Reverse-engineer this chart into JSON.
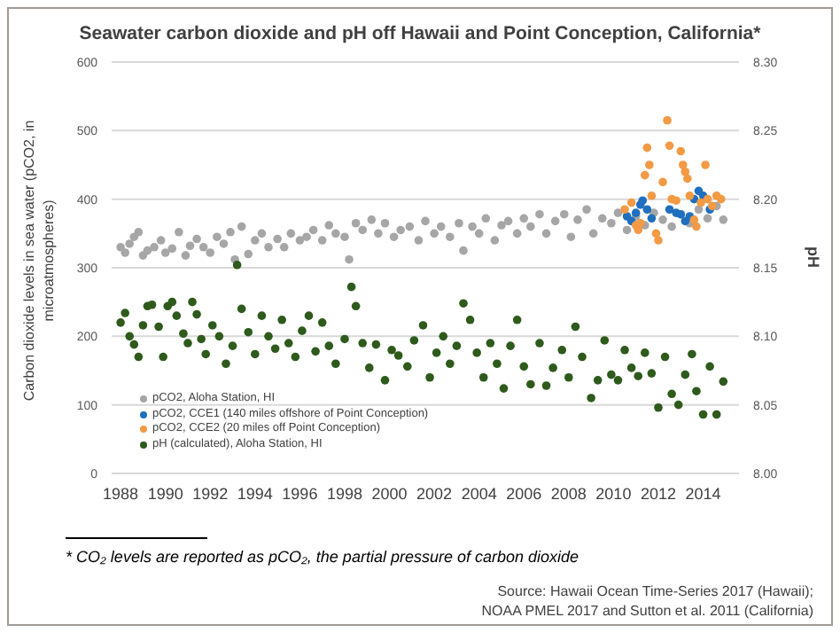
{
  "chart_data": {
    "type": "scatter",
    "title": "Seawater carbon dioxide and pH off Hawaii and Point Conception, California*",
    "ylabel": "Carbon dioxide levels in sea water (pCO2, in microatmospheres)",
    "y2label": "pH",
    "xlim": [
      1987.6,
      2015.6
    ],
    "xticks": [
      1988,
      1990,
      1992,
      1994,
      1996,
      1998,
      2000,
      2002,
      2004,
      2006,
      2008,
      2010,
      2012,
      2014
    ],
    "ylim": [
      0,
      600
    ],
    "yticks": [
      0,
      100,
      200,
      300,
      400,
      500,
      600
    ],
    "y2lim": [
      8.0,
      8.3
    ],
    "y2ticks": [
      {
        "value": 8.0,
        "label": "8.00"
      },
      {
        "value": 8.05,
        "label": "8.05"
      },
      {
        "value": 8.1,
        "label": "8.10"
      },
      {
        "value": 8.15,
        "label": "8.15"
      },
      {
        "value": 8.2,
        "label": "8.20"
      },
      {
        "value": 8.25,
        "label": "8.25"
      },
      {
        "value": 8.3,
        "label": "8.30"
      }
    ],
    "grid": "y",
    "legend": "bottom left",
    "marker": "circle",
    "annotations": [
      "* CO₂ levels are reported as pCO₂, the partial pressure of carbon dioxide",
      "Source: Hawaii Ocean Time-Series 2017 (Hawaii);",
      "NOAA PMEL 2017 and Sutton et al. 2011 (California)"
    ],
    "series": [
      {
        "name": "pCO2, Aloha Station, HI",
        "color": "#a6a6a6",
        "x": [
          1988.0,
          1988.2,
          1988.4,
          1988.6,
          1988.8,
          1989.0,
          1989.2,
          1989.5,
          1989.8,
          1990.0,
          1990.3,
          1990.6,
          1990.9,
          1991.1,
          1991.4,
          1991.7,
          1992.0,
          1992.3,
          1992.6,
          1992.9,
          1993.1,
          1993.4,
          1993.7,
          1994.0,
          1994.3,
          1994.6,
          1995.0,
          1995.3,
          1995.6,
          1996.0,
          1996.3,
          1996.6,
          1997.0,
          1997.3,
          1997.6,
          1998.0,
          1998.2,
          1998.5,
          1998.8,
          1999.2,
          1999.5,
          1999.8,
          2000.2,
          2000.5,
          2000.9,
          2001.3,
          2001.6,
          2002.0,
          2002.3,
          2002.7,
          2003.1,
          2003.3,
          2003.7,
          2004.0,
          2004.3,
          2004.7,
          2005.0,
          2005.3,
          2005.7,
          2006.0,
          2006.3,
          2006.7,
          2007.0,
          2007.4,
          2007.8,
          2008.1,
          2008.4,
          2008.8,
          2009.1,
          2009.5,
          2009.9,
          2010.2,
          2010.6,
          2011.0,
          2011.4,
          2011.8,
          2012.2,
          2012.6,
          2013.0,
          2013.4,
          2013.8,
          2014.2,
          2014.6,
          2014.9
        ],
        "values": [
          330,
          322,
          335,
          345,
          352,
          318,
          325,
          330,
          340,
          322,
          328,
          352,
          318,
          332,
          342,
          330,
          322,
          345,
          335,
          352,
          312,
          360,
          320,
          340,
          350,
          330,
          342,
          330,
          350,
          340,
          345,
          355,
          340,
          362,
          350,
          345,
          312,
          365,
          355,
          370,
          350,
          365,
          345,
          355,
          360,
          340,
          368,
          350,
          360,
          345,
          365,
          325,
          360,
          350,
          372,
          340,
          362,
          368,
          350,
          372,
          360,
          378,
          350,
          368,
          378,
          345,
          370,
          385,
          350,
          372,
          365,
          380,
          355,
          375,
          362,
          380,
          370,
          360,
          378,
          365,
          385,
          372,
          390,
          370
        ]
      },
      {
        "name": "pCO2, CCE1 (140 miles offshore of Point Conception)",
        "color": "#1f6fbf",
        "x": [
          2010.6,
          2010.8,
          2011.0,
          2011.2,
          2011.3,
          2011.5,
          2011.7,
          2012.5,
          2012.8,
          2013.0,
          2013.2,
          2013.4,
          2013.6,
          2013.8,
          2014.0,
          2014.3
        ],
        "values": [
          375,
          368,
          380,
          392,
          398,
          385,
          372,
          385,
          380,
          378,
          368,
          375,
          400,
          412,
          405,
          385
        ]
      },
      {
        "name": "pCO2, CCE2 (20 miles off Point Conception)",
        "color": "#f39a44",
        "x": [
          2010.5,
          2010.8,
          2011.0,
          2011.1,
          2011.2,
          2011.4,
          2011.5,
          2011.6,
          2011.7,
          2011.9,
          2012.0,
          2012.2,
          2012.4,
          2012.5,
          2012.6,
          2012.8,
          2013.0,
          2013.1,
          2013.2,
          2013.3,
          2013.4,
          2013.6,
          2013.7,
          2013.9,
          2014.1,
          2014.2,
          2014.4,
          2014.6,
          2014.8
        ],
        "values": [
          385,
          395,
          362,
          355,
          365,
          435,
          475,
          450,
          405,
          350,
          340,
          425,
          515,
          478,
          400,
          398,
          470,
          450,
          440,
          430,
          405,
          370,
          360,
          395,
          450,
          400,
          390,
          405,
          400
        ]
      },
      {
        "name": "pH (calculated), Aloha Station, HI",
        "color": "#2e5a1c",
        "axis": "y2",
        "x": [
          1988.0,
          1988.2,
          1988.4,
          1988.6,
          1988.8,
          1989.0,
          1989.2,
          1989.4,
          1989.7,
          1989.9,
          1990.1,
          1990.3,
          1990.5,
          1990.8,
          1991.0,
          1991.2,
          1991.4,
          1991.6,
          1991.8,
          1992.1,
          1992.4,
          1992.7,
          1993.0,
          1993.2,
          1993.4,
          1993.7,
          1994.0,
          1994.3,
          1994.6,
          1994.9,
          1995.2,
          1995.5,
          1995.8,
          1996.1,
          1996.4,
          1996.7,
          1997.0,
          1997.3,
          1997.6,
          1998.0,
          1998.3,
          1998.5,
          1998.8,
          1999.1,
          1999.4,
          1999.8,
          2000.1,
          2000.4,
          2000.8,
          2001.1,
          2001.5,
          2001.8,
          2002.1,
          2002.4,
          2002.7,
          2003.0,
          2003.3,
          2003.6,
          2003.9,
          2004.2,
          2004.5,
          2004.8,
          2005.1,
          2005.4,
          2005.7,
          2006.0,
          2006.3,
          2006.7,
          2007.0,
          2007.3,
          2007.7,
          2008.0,
          2008.3,
          2008.6,
          2009.0,
          2009.3,
          2009.6,
          2009.9,
          2010.2,
          2010.5,
          2010.8,
          2011.1,
          2011.4,
          2011.7,
          2012.0,
          2012.3,
          2012.6,
          2012.9,
          2013.2,
          2013.5,
          2013.7,
          2014.0,
          2014.3,
          2014.6,
          2014.9
        ],
        "values": [
          8.11,
          8.117,
          8.1,
          8.094,
          8.085,
          8.108,
          8.122,
          8.123,
          8.107,
          8.085,
          8.122,
          8.125,
          8.115,
          8.102,
          8.095,
          8.125,
          8.116,
          8.098,
          8.087,
          8.108,
          8.1,
          8.08,
          8.093,
          8.152,
          8.12,
          8.103,
          8.087,
          8.115,
          8.1,
          8.091,
          8.112,
          8.095,
          8.085,
          8.104,
          8.115,
          8.089,
          8.11,
          8.093,
          8.08,
          8.098,
          8.136,
          8.122,
          8.095,
          8.077,
          8.094,
          8.068,
          8.09,
          8.086,
          8.078,
          8.097,
          8.108,
          8.07,
          8.088,
          8.1,
          8.08,
          8.093,
          8.124,
          8.112,
          8.088,
          8.07,
          8.095,
          8.08,
          8.062,
          8.093,
          8.112,
          8.078,
          8.065,
          8.095,
          8.064,
          8.077,
          8.09,
          8.07,
          8.107,
          8.085,
          8.055,
          8.068,
          8.097,
          8.072,
          8.068,
          8.09,
          8.077,
          8.071,
          8.088,
          8.073,
          8.048,
          8.085,
          8.058,
          8.05,
          8.072,
          8.087,
          8.06,
          8.043,
          8.078,
          8.043,
          8.067
        ]
      }
    ]
  }
}
